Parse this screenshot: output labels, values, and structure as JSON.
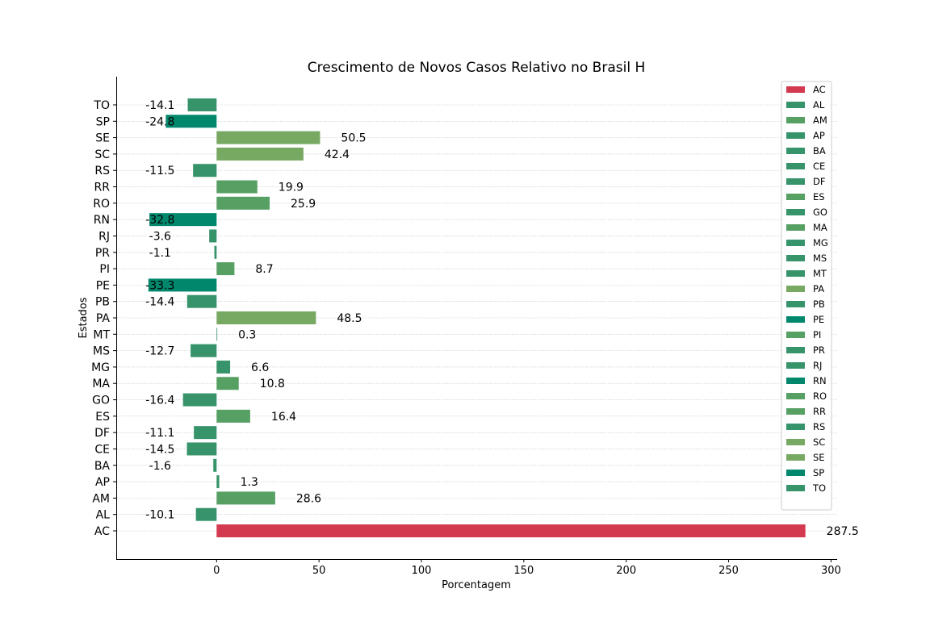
{
  "chart_data": {
    "type": "bar",
    "orientation": "horizontal",
    "title": "Crescimento de Novos Casos Relativo no Brasil H",
    "xlabel": "Porcentagem",
    "ylabel": "Estados",
    "xlim": [
      -49,
      303
    ],
    "xticks": [
      0,
      50,
      100,
      150,
      200,
      250,
      300
    ],
    "grid": "horizontal",
    "legend_position": "top-right",
    "categories": [
      "AC",
      "AL",
      "AM",
      "AP",
      "BA",
      "CE",
      "DF",
      "ES",
      "GO",
      "MA",
      "MG",
      "MS",
      "MT",
      "PA",
      "PB",
      "PE",
      "PI",
      "PR",
      "RJ",
      "RN",
      "RO",
      "RR",
      "RS",
      "SC",
      "SE",
      "SP",
      "TO"
    ],
    "values": [
      287.5,
      -10.1,
      28.6,
      1.3,
      -1.6,
      -14.5,
      -11.1,
      16.4,
      -16.4,
      10.8,
      6.6,
      -12.7,
      0.3,
      48.5,
      -14.4,
      -33.3,
      8.7,
      -1.1,
      -3.6,
      -32.8,
      25.9,
      19.9,
      -11.5,
      42.4,
      50.5,
      -24.8,
      -14.1
    ],
    "data_labels": [
      "287.5",
      "-10.1",
      "28.6",
      "1.3",
      "-1.6",
      "-14.5",
      "-11.1",
      "16.4",
      "-16.4",
      "10.8",
      "6.6",
      "-12.7",
      "0.3",
      "48.5",
      "-14.4",
      "-33.3",
      "8.7",
      "-1.1",
      "-3.6",
      "-32.8",
      "25.9",
      "19.9",
      "-11.5",
      "42.4",
      "50.5",
      "-24.8",
      "-14.1"
    ],
    "colors": [
      "#d43a4f",
      "#36936a",
      "#57a064",
      "#36936a",
      "#36936a",
      "#36936a",
      "#36936a",
      "#57a064",
      "#36936a",
      "#57a064",
      "#36936a",
      "#36936a",
      "#36936a",
      "#78a962",
      "#36936a",
      "#00876c",
      "#57a064",
      "#36936a",
      "#36936a",
      "#00876c",
      "#57a064",
      "#57a064",
      "#36936a",
      "#78a962",
      "#78a962",
      "#00876c",
      "#36936a"
    ]
  }
}
